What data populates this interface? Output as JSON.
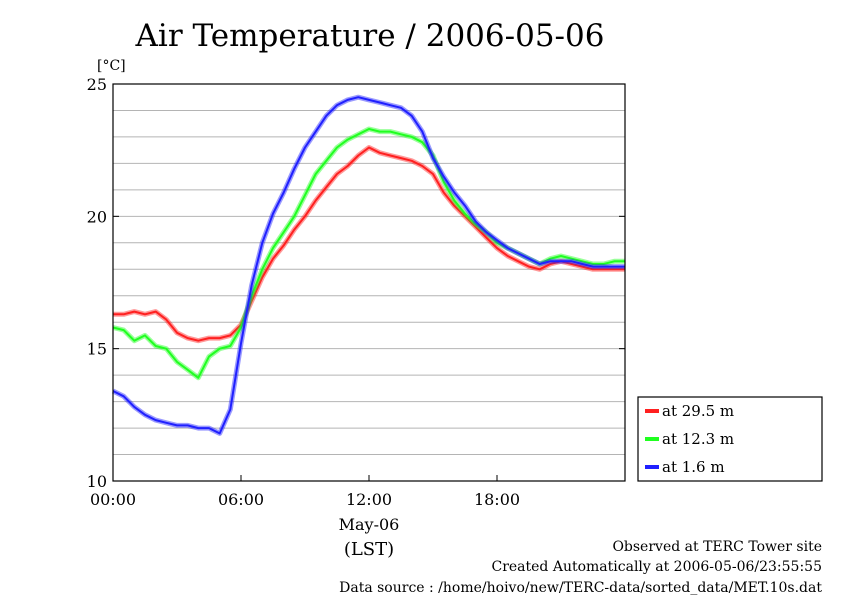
{
  "chart_data": {
    "type": "line",
    "title": "Air Temperature / 2006-05-06",
    "y_unit": "[°C]",
    "ylim": [
      10,
      25
    ],
    "y_ticks": [
      {
        "value": 10,
        "label": "10"
      },
      {
        "value": 15,
        "label": "15"
      },
      {
        "value": 20,
        "label": "20"
      },
      {
        "value": 25,
        "label": "25"
      }
    ],
    "xlim": [
      0,
      24
    ],
    "x_ticks": [
      {
        "value": 0,
        "label": "00:00"
      },
      {
        "value": 6,
        "label": "06:00"
      },
      {
        "value": 12,
        "label": "12:00"
      },
      {
        "value": 18,
        "label": "18:00"
      }
    ],
    "x_date_label": "May-06",
    "x_axis_label": "(LST)",
    "grid": true,
    "legend_position": "right",
    "series": [
      {
        "name": "at 29.5 m",
        "color": "#ff2020",
        "x": [
          0,
          0.5,
          1,
          1.5,
          2,
          2.5,
          3,
          3.5,
          4,
          4.5,
          5,
          5.5,
          6,
          6.5,
          7,
          7.5,
          8,
          8.5,
          9,
          9.5,
          10,
          10.5,
          11,
          11.5,
          12,
          12.5,
          13,
          13.5,
          14,
          14.5,
          15,
          15.5,
          16,
          16.5,
          17,
          17.5,
          18,
          18.5,
          19,
          19.5,
          20,
          20.5,
          21,
          21.5,
          22,
          22.5,
          23,
          23.5,
          24
        ],
        "values": [
          16.3,
          16.3,
          16.4,
          16.3,
          16.4,
          16.1,
          15.6,
          15.4,
          15.3,
          15.4,
          15.4,
          15.5,
          15.9,
          16.8,
          17.7,
          18.4,
          18.9,
          19.5,
          20.0,
          20.6,
          21.1,
          21.6,
          21.9,
          22.3,
          22.6,
          22.4,
          22.3,
          22.2,
          22.1,
          21.9,
          21.6,
          20.9,
          20.4,
          20.0,
          19.6,
          19.2,
          18.8,
          18.5,
          18.3,
          18.1,
          18.0,
          18.2,
          18.3,
          18.2,
          18.1,
          18.0,
          18.0,
          18.0,
          18.0
        ]
      },
      {
        "name": "at 12.3 m",
        "color": "#20ff20",
        "x": [
          0,
          0.5,
          1,
          1.5,
          2,
          2.5,
          3,
          3.5,
          4,
          4.5,
          5,
          5.5,
          6,
          6.5,
          7,
          7.5,
          8,
          8.5,
          9,
          9.5,
          10,
          10.5,
          11,
          11.5,
          12,
          12.5,
          13,
          13.5,
          14,
          14.5,
          15,
          15.5,
          16,
          16.5,
          17,
          17.5,
          18,
          18.5,
          19,
          19.5,
          20,
          20.5,
          21,
          21.5,
          22,
          22.5,
          23,
          23.5,
          24
        ],
        "values": [
          15.8,
          15.7,
          15.3,
          15.5,
          15.1,
          15.0,
          14.5,
          14.2,
          13.9,
          14.7,
          15.0,
          15.1,
          15.8,
          17.0,
          18.0,
          18.8,
          19.4,
          20.0,
          20.8,
          21.6,
          22.1,
          22.6,
          22.9,
          23.1,
          23.3,
          23.2,
          23.2,
          23.1,
          23.0,
          22.8,
          22.3,
          21.3,
          20.6,
          20.1,
          19.7,
          19.4,
          19.0,
          18.8,
          18.6,
          18.4,
          18.2,
          18.4,
          18.5,
          18.4,
          18.3,
          18.2,
          18.2,
          18.3,
          18.3
        ]
      },
      {
        "name": "at 1.6 m",
        "color": "#2020ff",
        "x": [
          0,
          0.5,
          1,
          1.5,
          2,
          2.5,
          3,
          3.5,
          4,
          4.5,
          5,
          5.5,
          6,
          6.5,
          7,
          7.5,
          8,
          8.5,
          9,
          9.5,
          10,
          10.5,
          11,
          11.5,
          12,
          12.5,
          13,
          13.5,
          14,
          14.5,
          15,
          15.5,
          16,
          16.5,
          17,
          17.5,
          18,
          18.5,
          19,
          19.5,
          20,
          20.5,
          21,
          21.5,
          22,
          22.5,
          23,
          23.5,
          24
        ],
        "values": [
          13.4,
          13.2,
          12.8,
          12.5,
          12.3,
          12.2,
          12.1,
          12.1,
          12.0,
          12.0,
          11.8,
          12.7,
          15.2,
          17.4,
          19.0,
          20.1,
          20.9,
          21.8,
          22.6,
          23.2,
          23.8,
          24.2,
          24.4,
          24.5,
          24.4,
          24.3,
          24.2,
          24.1,
          23.8,
          23.2,
          22.2,
          21.5,
          20.9,
          20.4,
          19.8,
          19.4,
          19.1,
          18.8,
          18.6,
          18.4,
          18.2,
          18.3,
          18.3,
          18.3,
          18.2,
          18.1,
          18.1,
          18.1,
          18.1
        ]
      }
    ]
  },
  "footer": {
    "observed": "Observed at TERC Tower site",
    "created": "Created Automatically at 2006-05-06/23:55:55",
    "source": "Data source : /home/hoivo/new/TERC-data/sorted_data/MET.10s.dat"
  }
}
